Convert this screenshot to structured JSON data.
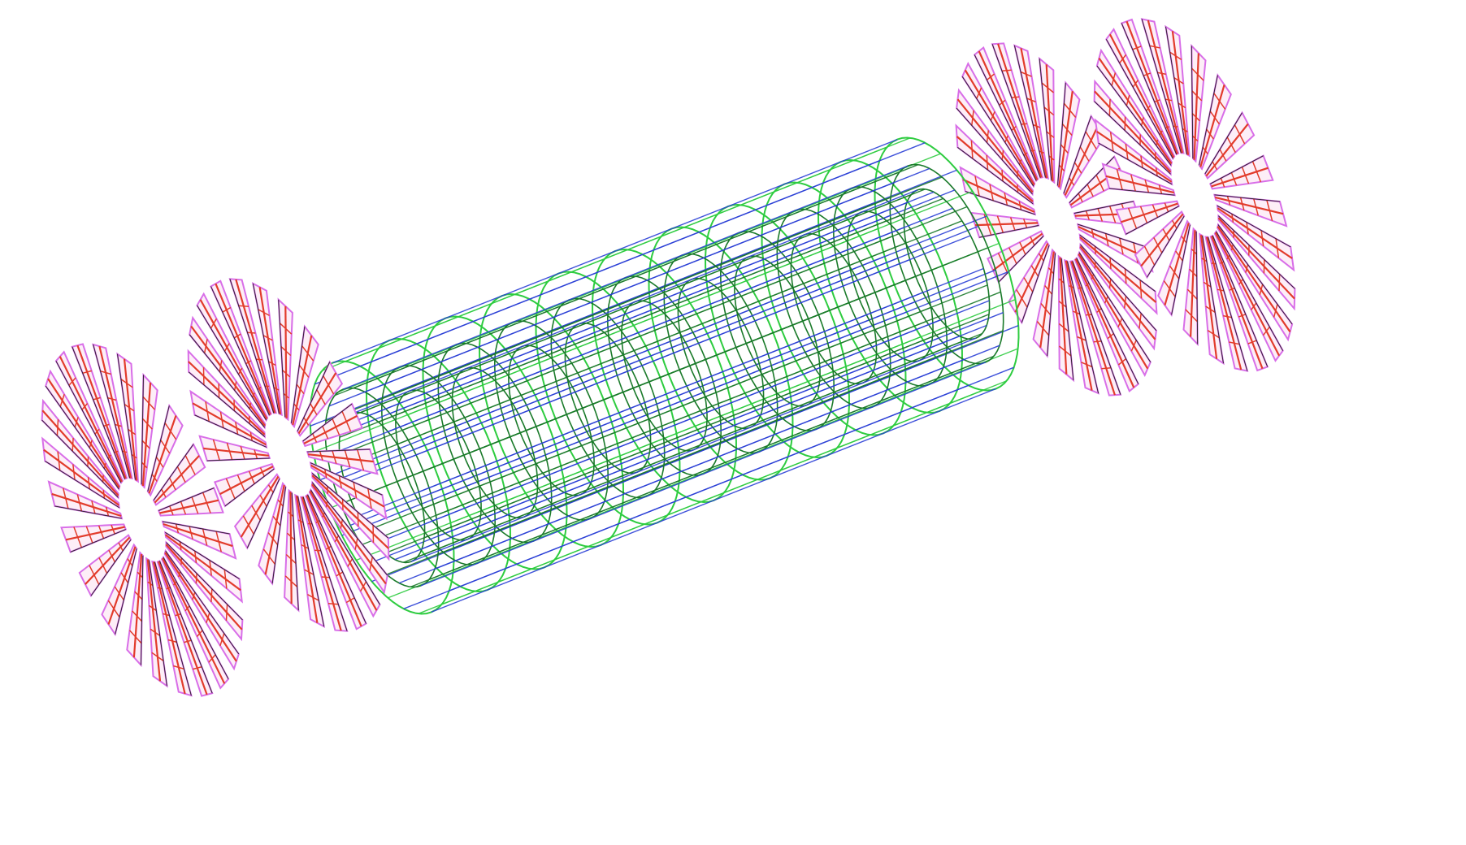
{
  "diagram": {
    "subject": "wireframe-detector-geometry",
    "barrel": {
      "layers": 3,
      "phi_segments": 28,
      "z_segments": 10,
      "colors": {
        "outer": "#2ecc40",
        "inner": "#1a7a2a",
        "stave": "#2a3fd6"
      }
    },
    "endcaps": {
      "disks_per_side": 2,
      "blades_per_disk": 24,
      "colors": {
        "outline": "#d86ee8",
        "sensor": "#e23b2b",
        "edge": "#222222"
      }
    }
  }
}
